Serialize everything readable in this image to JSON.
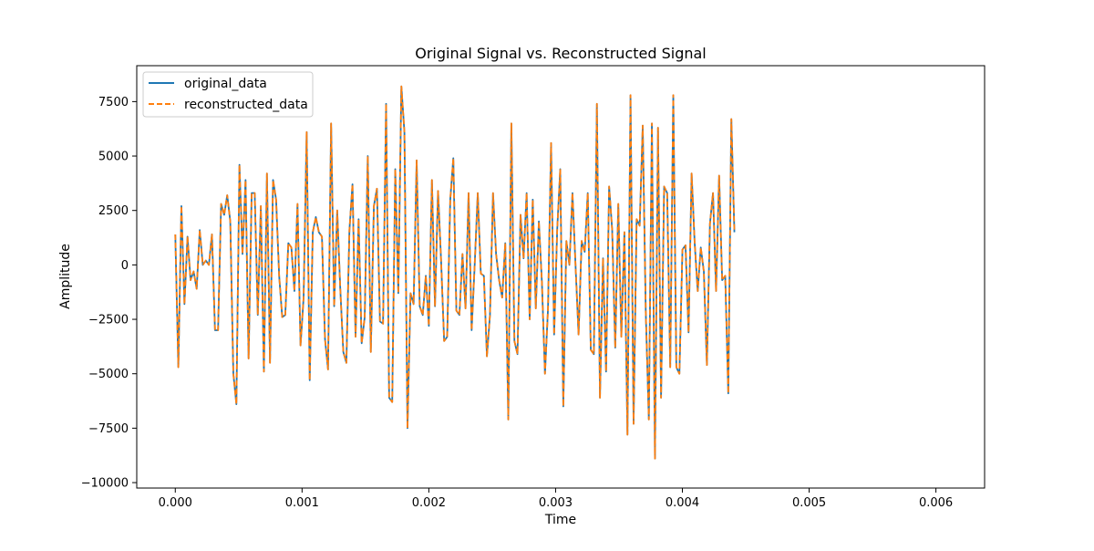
{
  "chart_data": {
    "type": "line",
    "title": "Original Signal vs. Reconstructed Signal",
    "xlabel": "Time",
    "ylabel": "Amplitude",
    "xlim": [
      -0.000304,
      0.006384
    ],
    "ylim": [
      -10250,
      9150
    ],
    "x_ticks": [
      0.0,
      0.001,
      0.002,
      0.003,
      0.004,
      0.005,
      0.006
    ],
    "x_tick_labels": [
      "0.000",
      "0.001",
      "0.002",
      "0.003",
      "0.004",
      "0.005",
      "0.006"
    ],
    "y_ticks": [
      -10000,
      -7500,
      -5000,
      -2500,
      0,
      2500,
      5000,
      7500
    ],
    "y_tick_labels": [
      "−10000",
      "−7500",
      "−5000",
      "−2500",
      "0",
      "2500",
      "5000",
      "7500"
    ],
    "grid": false,
    "legend_position": "upper-left",
    "x_start": 0.0,
    "x_step": 2.41e-05,
    "series": [
      {
        "name": "original_data",
        "color": "#1f77b4",
        "style": "solid",
        "values": [
          1400,
          -4700,
          2700,
          -1800,
          1300,
          -700,
          -300,
          -1100,
          1600,
          0,
          200,
          0,
          1400,
          -3000,
          -3000,
          2800,
          2300,
          3200,
          2000,
          -5000,
          -6400,
          4600,
          500,
          3900,
          -4300,
          3300,
          3300,
          -2300,
          2700,
          -4900,
          4200,
          -4500,
          3900,
          3000,
          -500,
          -2400,
          -2300,
          1000,
          800,
          -1200,
          2800,
          -3700,
          -1500,
          6100,
          -5300,
          1500,
          2200,
          1500,
          1300,
          -3400,
          -4800,
          6500,
          -1900,
          2500,
          -1100,
          -4000,
          -4500,
          1600,
          3700,
          -3300,
          2100,
          -3600,
          -2400,
          5000,
          -4000,
          2700,
          3500,
          -2600,
          -2700,
          7400,
          -6100,
          -6300,
          4400,
          -1300,
          8200,
          6100,
          -7500,
          -1300,
          -1800,
          4800,
          -1900,
          -2300,
          -500,
          -2800,
          3900,
          -1900,
          3400,
          200,
          -3500,
          -3300,
          3000,
          4900,
          -2100,
          -2300,
          500,
          -2000,
          3300,
          -3000,
          0,
          3300,
          -400,
          -500,
          -4200,
          -2300,
          3300,
          500,
          -700,
          -1500,
          1000,
          -7100,
          6500,
          -3500,
          -4100,
          2300,
          300,
          3300,
          -2500,
          3000,
          -2000,
          2000,
          -800,
          -5000,
          -2000,
          5600,
          -3200,
          1600,
          4400,
          -6500,
          1100,
          0,
          3300,
          0,
          -3200,
          1100,
          600,
          3300,
          -3900,
          -4100,
          7400,
          -6100,
          300,
          -4900,
          3600,
          1600,
          -3800,
          2800,
          -3300,
          1500,
          -7800,
          7800,
          -7300,
          2100,
          1800,
          6400,
          -2200,
          -7100,
          6500,
          -8900,
          6300,
          -6100,
          3600,
          3300,
          -4700,
          7800,
          -4700,
          -5000,
          700,
          900,
          -3100,
          4200,
          1000,
          -1200,
          800,
          -300,
          -4600,
          1900,
          3300,
          -1200,
          4100,
          -700,
          -500,
          -5900,
          6700,
          1500
        ]
      },
      {
        "name": "reconstructed_data",
        "color": "#ff7f0e",
        "style": "dashed",
        "values": [
          1400,
          -4700,
          2700,
          -1800,
          1300,
          -700,
          -300,
          -1100,
          1600,
          0,
          200,
          0,
          1400,
          -3000,
          -3000,
          2800,
          2300,
          3200,
          2000,
          -5000,
          -6400,
          4600,
          500,
          3900,
          -4300,
          3300,
          3300,
          -2300,
          2700,
          -4900,
          4200,
          -4500,
          3900,
          3000,
          -500,
          -2400,
          -2300,
          1000,
          800,
          -1200,
          2800,
          -3700,
          -1500,
          6100,
          -5300,
          1500,
          2200,
          1500,
          1300,
          -3400,
          -4800,
          6500,
          -1900,
          2500,
          -1100,
          -4000,
          -4500,
          1600,
          3700,
          -3300,
          2100,
          -3600,
          -2400,
          5000,
          -4000,
          2700,
          3500,
          -2600,
          -2700,
          7400,
          -6100,
          -6300,
          4400,
          -1300,
          8200,
          6100,
          -7500,
          -1300,
          -1800,
          4800,
          -1900,
          -2300,
          -500,
          -2800,
          3900,
          -1900,
          3400,
          200,
          -3500,
          -3300,
          3000,
          4900,
          -2100,
          -2300,
          500,
          -2000,
          3300,
          -3000,
          0,
          3300,
          -400,
          -500,
          -4200,
          -2300,
          3300,
          500,
          -700,
          -1500,
          1000,
          -7100,
          6500,
          -3500,
          -4100,
          2300,
          300,
          3300,
          -2500,
          3000,
          -2000,
          2000,
          -800,
          -5000,
          -2000,
          5600,
          -3200,
          1600,
          4400,
          -6500,
          1100,
          0,
          3300,
          0,
          -3200,
          1100,
          600,
          3300,
          -3900,
          -4100,
          7400,
          -6100,
          300,
          -4900,
          3600,
          1600,
          -3800,
          2800,
          -3300,
          1500,
          -7800,
          7800,
          -7300,
          2100,
          1800,
          6400,
          -2200,
          -7100,
          6500,
          -8900,
          6300,
          -6100,
          3600,
          3300,
          -4700,
          7800,
          -4700,
          -5000,
          700,
          900,
          -3100,
          4200,
          1000,
          -1200,
          800,
          -300,
          -4600,
          1900,
          3300,
          -1200,
          4100,
          -700,
          -500,
          -5900,
          6700,
          1500
        ]
      }
    ]
  }
}
